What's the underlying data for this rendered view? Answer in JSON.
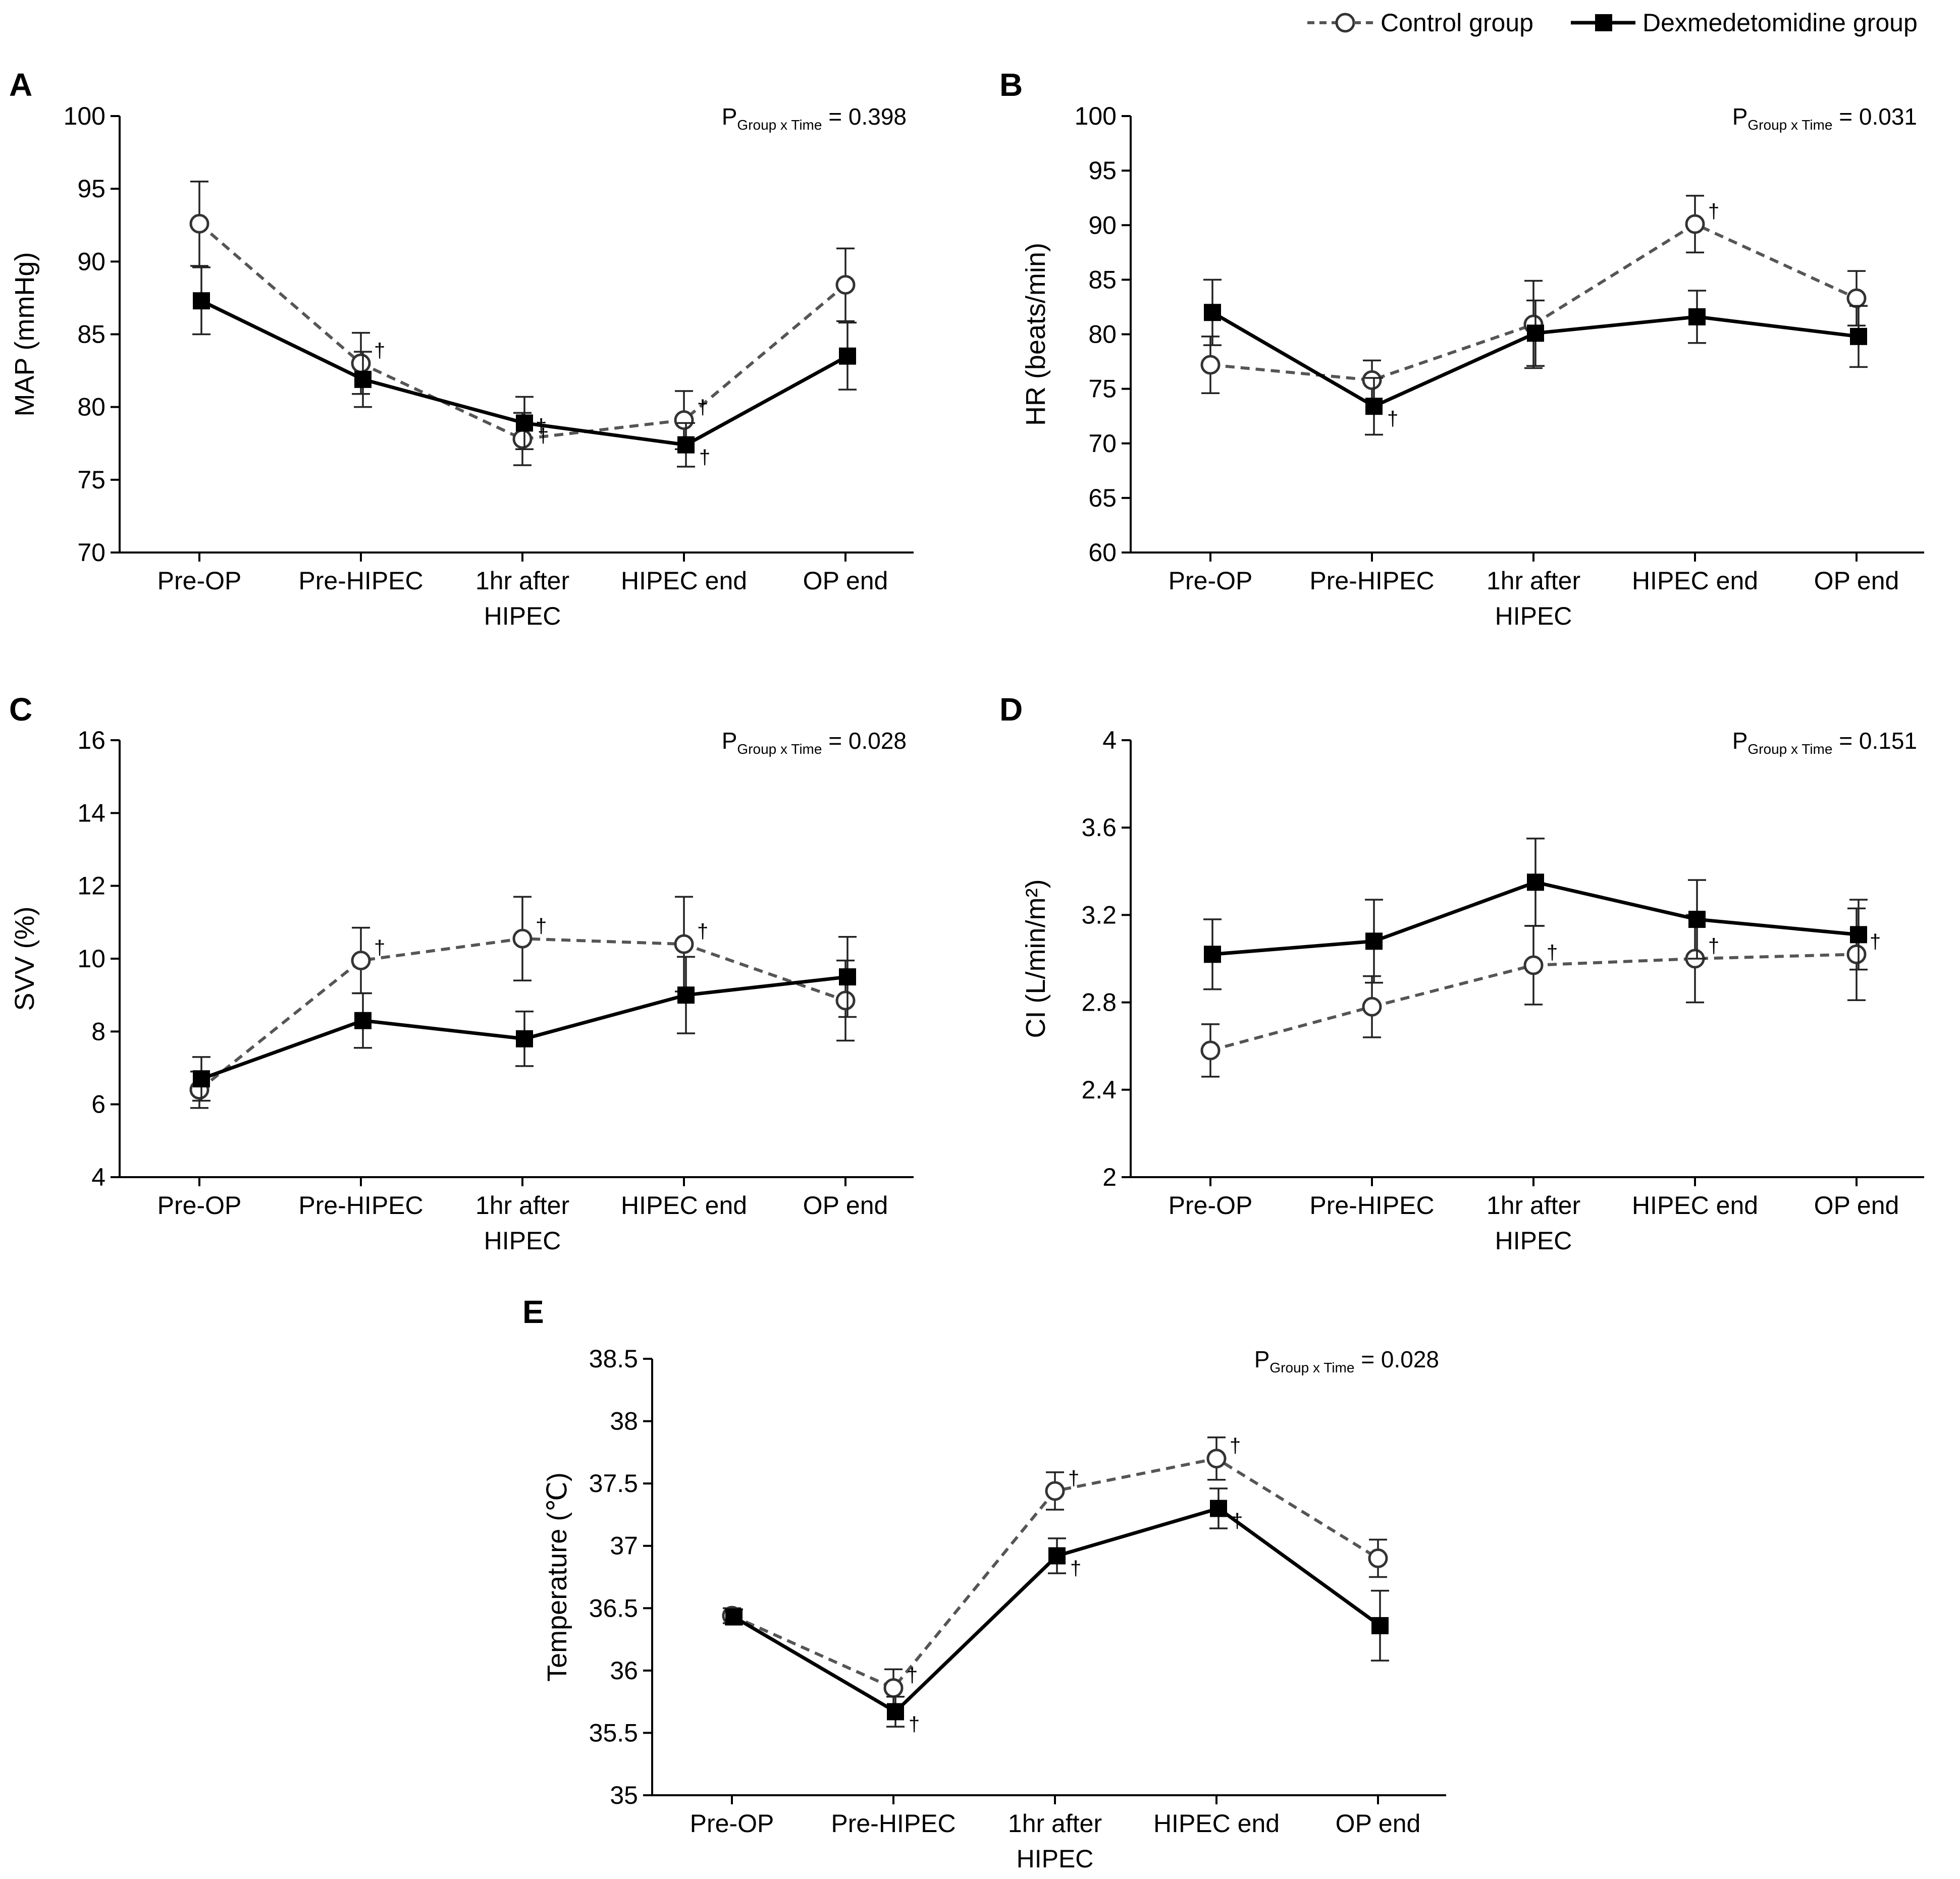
{
  "legend": {
    "control_label": "Control group",
    "dex_label": "Dexmedetomidine group"
  },
  "p_prefix": "P",
  "p_subscript": "Group x Time",
  "chart_data": [
    {
      "id": "panel-A",
      "letter": "A",
      "type": "line",
      "ylabel": "MAP (mmHg)",
      "ylim": [
        70,
        100
      ],
      "yticks": [
        70,
        75,
        80,
        85,
        90,
        95,
        100
      ],
      "categories": [
        [
          "Pre-OP"
        ],
        [
          "Pre-HIPEC"
        ],
        [
          "1hr after",
          "HIPEC"
        ],
        [
          "HIPEC end"
        ],
        [
          "OP end"
        ]
      ],
      "p_value": "= 0.398",
      "series": [
        {
          "name": "Control group",
          "values": [
            92.6,
            83.0,
            77.8,
            79.1,
            88.4
          ],
          "errors": [
            2.9,
            2.1,
            1.8,
            2.0,
            2.5
          ],
          "dagger": [
            false,
            true,
            true,
            true,
            false
          ]
        },
        {
          "name": "Dexmedetomidine group",
          "values": [
            87.3,
            81.9,
            78.9,
            77.4,
            83.5
          ],
          "errors": [
            2.3,
            1.9,
            1.8,
            1.5,
            2.3
          ],
          "dagger": [
            false,
            false,
            true,
            true,
            false
          ]
        }
      ]
    },
    {
      "id": "panel-B",
      "letter": "B",
      "type": "line",
      "ylabel": "HR (beats/min)",
      "ylim": [
        60,
        100
      ],
      "yticks": [
        60,
        65,
        70,
        75,
        80,
        85,
        90,
        95,
        100
      ],
      "categories": [
        [
          "Pre-OP"
        ],
        [
          "Pre-HIPEC"
        ],
        [
          "1hr after",
          "HIPEC"
        ],
        [
          "HIPEC end"
        ],
        [
          "OP end"
        ]
      ],
      "p_value": "= 0.031",
      "series": [
        {
          "name": "Control group",
          "values": [
            77.2,
            75.8,
            80.9,
            90.1,
            83.3
          ],
          "errors": [
            2.6,
            1.8,
            4.0,
            2.6,
            2.5
          ],
          "dagger": [
            false,
            false,
            false,
            true,
            false
          ]
        },
        {
          "name": "Dexmedetomidine group",
          "values": [
            82.0,
            73.4,
            80.1,
            81.6,
            79.8
          ],
          "errors": [
            3.0,
            2.6,
            3.0,
            2.4,
            2.8
          ],
          "dagger": [
            false,
            true,
            false,
            false,
            false
          ]
        }
      ]
    },
    {
      "id": "panel-C",
      "letter": "C",
      "type": "line",
      "ylabel": "SVV (%)",
      "ylim": [
        4,
        16
      ],
      "yticks": [
        4,
        6,
        8,
        10,
        12,
        14,
        16
      ],
      "categories": [
        [
          "Pre-OP"
        ],
        [
          "Pre-HIPEC"
        ],
        [
          "1hr after",
          "HIPEC"
        ],
        [
          "HIPEC end"
        ],
        [
          "OP end"
        ]
      ],
      "p_value": "= 0.028",
      "series": [
        {
          "name": "Control group",
          "values": [
            6.4,
            9.95,
            10.55,
            10.4,
            8.85
          ],
          "errors": [
            0.5,
            0.9,
            1.15,
            1.3,
            1.1
          ],
          "dagger": [
            false,
            true,
            true,
            true,
            false
          ]
        },
        {
          "name": "Dexmedetomidine group",
          "values": [
            6.7,
            8.3,
            7.8,
            9.0,
            9.5
          ],
          "errors": [
            0.6,
            0.75,
            0.75,
            1.05,
            1.1
          ],
          "dagger": [
            false,
            false,
            false,
            false,
            false
          ]
        }
      ]
    },
    {
      "id": "panel-D",
      "letter": "D",
      "type": "line",
      "ylabel": "CI (L/min/m²)",
      "ylim": [
        2,
        4
      ],
      "yticks": [
        "2",
        "2.4",
        "2.8",
        "3.2",
        "3.6",
        "4"
      ],
      "categories": [
        [
          "Pre-OP"
        ],
        [
          "Pre-HIPEC"
        ],
        [
          "1hr after",
          "HIPEC"
        ],
        [
          "HIPEC end"
        ],
        [
          "OP end"
        ]
      ],
      "p_value": "= 0.151",
      "series": [
        {
          "name": "Control group",
          "values": [
            2.58,
            2.78,
            2.97,
            3.0,
            3.02
          ],
          "errors": [
            0.12,
            0.14,
            0.18,
            0.2,
            0.21
          ],
          "dagger": [
            false,
            false,
            true,
            true,
            true
          ]
        },
        {
          "name": "Dexmedetomidine group",
          "values": [
            3.02,
            3.08,
            3.35,
            3.18,
            3.11
          ],
          "errors": [
            0.16,
            0.19,
            0.2,
            0.18,
            0.16
          ],
          "dagger": [
            false,
            false,
            false,
            false,
            false
          ]
        }
      ]
    },
    {
      "id": "panel-E",
      "letter": "E",
      "type": "line",
      "ylabel": "Temperature (℃)",
      "ylim": [
        35,
        38.5
      ],
      "yticks": [
        "35",
        "35.5",
        "36",
        "36.5",
        "37",
        "37.5",
        "38",
        "38.5"
      ],
      "categories": [
        [
          "Pre-OP"
        ],
        [
          "Pre-HIPEC"
        ],
        [
          "1hr after",
          "HIPEC"
        ],
        [
          "HIPEC end"
        ],
        [
          "OP end"
        ]
      ],
      "p_value": "= 0.028",
      "series": [
        {
          "name": "Control group",
          "values": [
            36.44,
            35.86,
            37.44,
            37.7,
            36.9
          ],
          "errors": [
            0.06,
            0.15,
            0.15,
            0.17,
            0.15
          ],
          "dagger": [
            false,
            true,
            true,
            true,
            false
          ]
        },
        {
          "name": "Dexmedetomidine group",
          "values": [
            36.43,
            35.67,
            36.92,
            37.3,
            36.36
          ],
          "errors": [
            0.06,
            0.12,
            0.14,
            0.16,
            0.28
          ],
          "dagger": [
            false,
            true,
            true,
            true,
            false
          ]
        }
      ]
    }
  ]
}
